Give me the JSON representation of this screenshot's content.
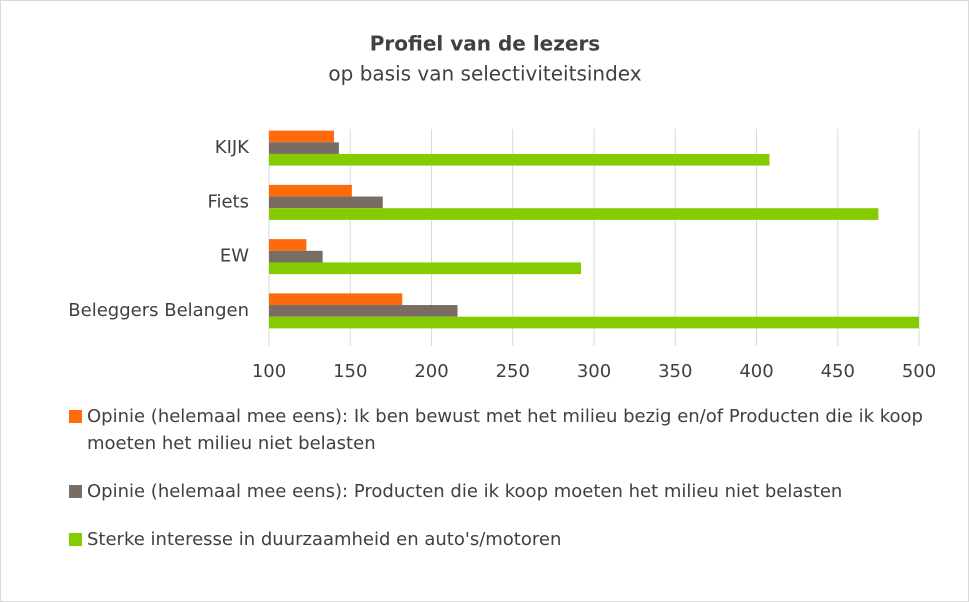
{
  "chart_data": {
    "type": "hbar",
    "title": "Profiel van de lezers",
    "subtitle": "op basis van selectiviteitsindex",
    "categories": [
      "KIJK",
      "Fiets",
      "EW",
      "Beleggers Belangen"
    ],
    "series": [
      {
        "name": "Opinie (helemaal mee eens): Ik ben bewust met het milieu bezig en/of Producten die ik koop moeten het milieu niet belasten",
        "color": "#ff6a0d",
        "values": [
          140,
          151,
          123,
          182
        ]
      },
      {
        "name": "Opinie (helemaal mee eens): Producten die ik koop moeten het milieu niet belasten",
        "color": "#786c63",
        "values": [
          143,
          170,
          133,
          216
        ]
      },
      {
        "name": "Sterke interesse in duurzaamheid en auto's/motoren",
        "color": "#84cc00",
        "values": [
          408,
          475,
          292,
          500
        ]
      }
    ],
    "xlim": [
      100,
      500
    ],
    "xticks": [
      100,
      150,
      200,
      250,
      300,
      350,
      400,
      450,
      500
    ],
    "grid": true,
    "legend": "bottom"
  }
}
